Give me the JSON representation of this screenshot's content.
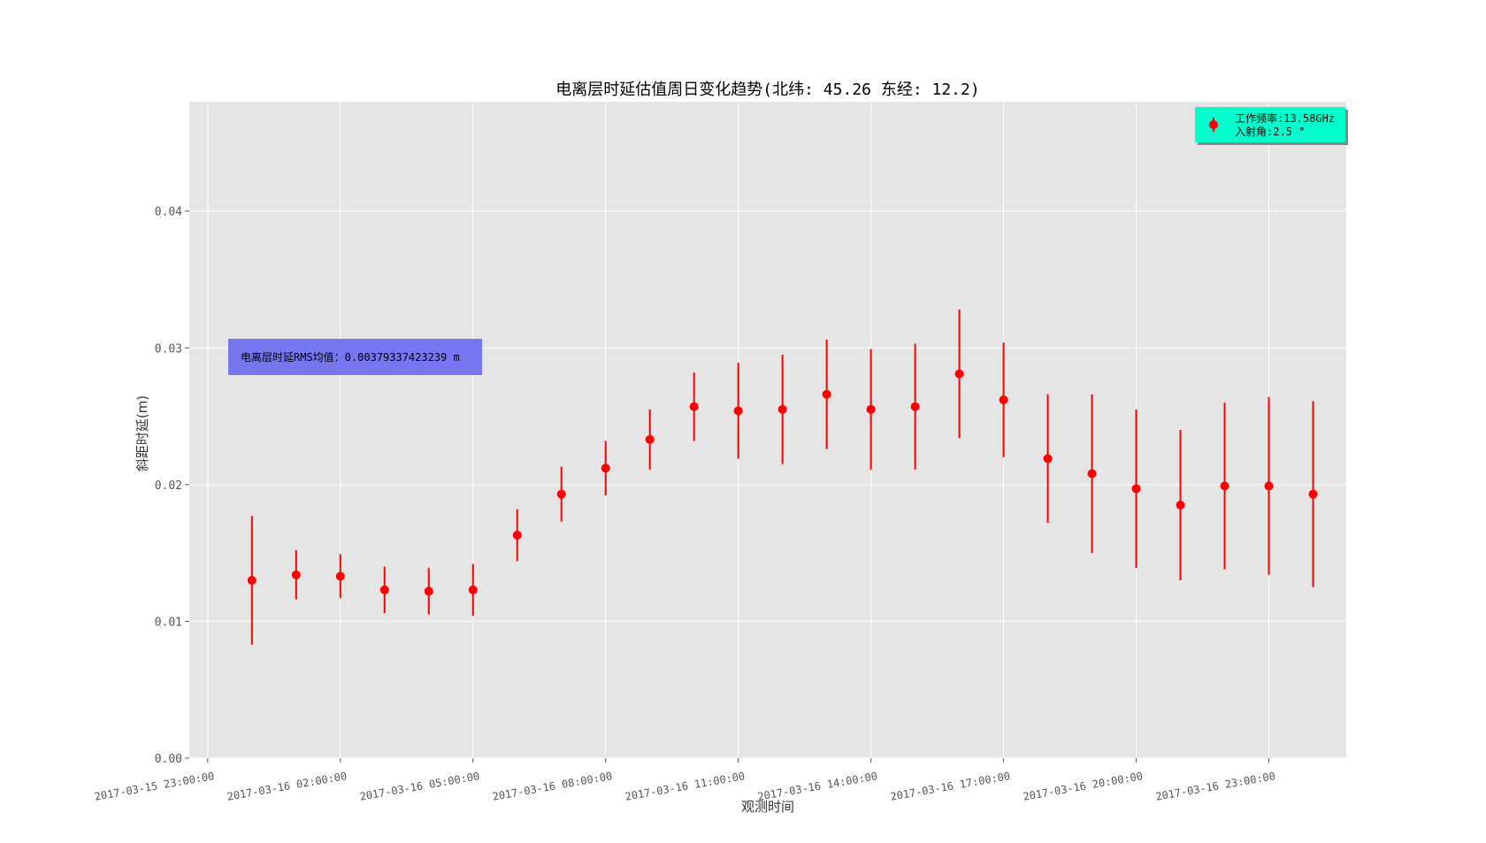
{
  "chart_data": {
    "type": "scatter",
    "title": "电离层时延估值周日变化趋势(北纬: 45.26 东经: 12.2)",
    "xlabel": "观测时间",
    "ylabel": "斜距时延(m)",
    "ylim": [
      0,
      0.048
    ],
    "yticks": [
      0.0,
      0.01,
      0.02,
      0.03,
      0.04
    ],
    "ytick_labels": [
      "0.00",
      "0.01",
      "0.02",
      "0.03",
      "0.04"
    ],
    "xlim": [
      "2017-03-15 22:35:00",
      "2017-03-17 00:45:00"
    ],
    "xtick_labels": [
      "2017-03-15 23:00:00",
      "2017-03-16 02:00:00",
      "2017-03-16 05:00:00",
      "2017-03-16 08:00:00",
      "2017-03-16 11:00:00",
      "2017-03-16 14:00:00",
      "2017-03-16 17:00:00",
      "2017-03-16 20:00:00",
      "2017-03-16 23:00:00"
    ],
    "grid": true,
    "legend_position": "top-right",
    "series": [
      {
        "name": "工作频率:13.58GHz\n入射角:2.5 °",
        "color": "#ff0000",
        "x": [
          "2017-03-16 00:00:00",
          "2017-03-16 01:00:00",
          "2017-03-16 02:00:00",
          "2017-03-16 03:00:00",
          "2017-03-16 04:00:00",
          "2017-03-16 05:00:00",
          "2017-03-16 06:00:00",
          "2017-03-16 07:00:00",
          "2017-03-16 08:00:00",
          "2017-03-16 09:00:00",
          "2017-03-16 10:00:00",
          "2017-03-16 11:00:00",
          "2017-03-16 12:00:00",
          "2017-03-16 13:00:00",
          "2017-03-16 14:00:00",
          "2017-03-16 15:00:00",
          "2017-03-16 16:00:00",
          "2017-03-16 17:00:00",
          "2017-03-16 18:00:00",
          "2017-03-16 19:00:00",
          "2017-03-16 20:00:00",
          "2017-03-16 21:00:00",
          "2017-03-16 22:00:00",
          "2017-03-16 23:00:00",
          "2017-03-17 00:00:00"
        ],
        "y": [
          0.013,
          0.0134,
          0.0133,
          0.0123,
          0.0122,
          0.0123,
          0.0163,
          0.0193,
          0.0212,
          0.0233,
          0.0257,
          0.0254,
          0.0255,
          0.0266,
          0.0255,
          0.0257,
          0.0281,
          0.0262,
          0.0219,
          0.0208,
          0.0197,
          0.0185,
          0.0199,
          0.0199,
          0.0193
        ],
        "err": [
          0.0047,
          0.0018,
          0.0016,
          0.0017,
          0.0017,
          0.0019,
          0.0019,
          0.002,
          0.002,
          0.0022,
          0.0025,
          0.0035,
          0.004,
          0.004,
          0.0044,
          0.0046,
          0.0047,
          0.0042,
          0.0047,
          0.0058,
          0.0058,
          0.0055,
          0.0061,
          0.0065,
          0.0068
        ]
      }
    ],
    "annotations": [
      {
        "text": "电离层时延RMS均值：0.00379337423239 m",
        "box_color": "#7070f0",
        "y": 0.0292
      }
    ],
    "legend_box_color": "#00ffcc"
  }
}
